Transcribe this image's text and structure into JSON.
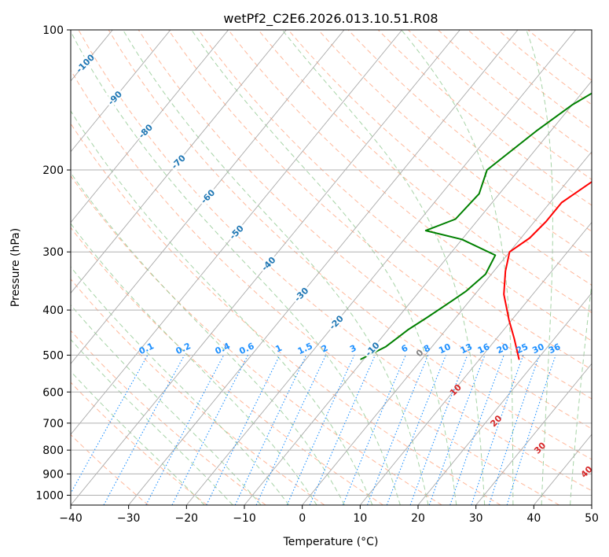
{
  "chart_data": {
    "type": "skew-t",
    "title": "wetPf2_C2E6.2026.013.10.51.R08",
    "xlabel": "Temperature (°C)",
    "ylabel": "Pressure (hPa)",
    "xlim": [
      -40,
      50
    ],
    "ylim": [
      1050,
      100
    ],
    "x_ticks": [
      -40,
      -30,
      -20,
      -10,
      0,
      10,
      20,
      30,
      40,
      50
    ],
    "y_ticks": [
      100,
      200,
      300,
      400,
      500,
      600,
      700,
      800,
      900,
      1000
    ],
    "grid": true,
    "colors": {
      "temperature": "#ff0000",
      "dewpoint": "#008000",
      "isotherm": "#a9a9a9",
      "dry_adiabat": "#ffa07a",
      "moist_adiabat": "#90c890",
      "mixing_ratio": "#1e90ff",
      "isotherm_label": "#1f77b4",
      "moist_label": "#d62728"
    },
    "series": [
      {
        "name": "Temperature",
        "color": "#ff0000",
        "points": [
          [
            16.8,
            510
          ],
          [
            13.0,
            460
          ],
          [
            9.5,
            420
          ],
          [
            5.0,
            370
          ],
          [
            2.0,
            330
          ],
          [
            0.0,
            300
          ],
          [
            1.5,
            280
          ],
          [
            2.0,
            258
          ],
          [
            2.0,
            235
          ],
          [
            4.5,
            210
          ],
          [
            9.0,
            180
          ],
          [
            12.8,
            160
          ],
          [
            12.0,
            140
          ],
          [
            10.5,
            125
          ],
          [
            11.5,
            110
          ],
          [
            12.0,
            100
          ]
        ]
      },
      {
        "name": "Dewpoint",
        "color": "#008000",
        "points": [
          [
            -10.5,
            510
          ],
          [
            -8.0,
            480
          ],
          [
            -6.5,
            440
          ],
          [
            -5.0,
            415
          ],
          [
            -3.5,
            390
          ],
          [
            -2.0,
            365
          ],
          [
            -1.0,
            335
          ],
          [
            -2.0,
            305
          ],
          [
            -10.0,
            282
          ],
          [
            -17.5,
            270
          ],
          [
            -14.0,
            255
          ],
          [
            -13.5,
            225
          ],
          [
            -15.5,
            200
          ],
          [
            -12.5,
            165
          ],
          [
            -10.0,
            145
          ],
          [
            -5.5,
            125
          ],
          [
            -1.5,
            110
          ],
          [
            0.5,
            100
          ]
        ]
      }
    ],
    "isotherm_labels": [
      {
        "value": -100,
        "text": "-100"
      },
      {
        "value": -90,
        "text": "-90"
      },
      {
        "value": -80,
        "text": "-80"
      },
      {
        "value": -70,
        "text": "-70"
      },
      {
        "value": -60,
        "text": "-60"
      },
      {
        "value": -50,
        "text": "-50"
      },
      {
        "value": -40,
        "text": "-40"
      },
      {
        "value": -30,
        "text": "-30"
      },
      {
        "value": -20,
        "text": "-20"
      },
      {
        "value": -10,
        "text": "-10"
      }
    ],
    "mixing_ratio_labels": [
      {
        "value": 0.1,
        "text": "0.1"
      },
      {
        "value": 0.2,
        "text": "0.2"
      },
      {
        "value": 0.4,
        "text": "0.4"
      },
      {
        "value": 0.6,
        "text": "0.6"
      },
      {
        "value": 1,
        "text": "1"
      },
      {
        "value": 1.5,
        "text": "1.5"
      },
      {
        "value": 2,
        "text": "2"
      },
      {
        "value": 3,
        "text": "3"
      },
      {
        "value": 4,
        "text": "4"
      },
      {
        "value": 6,
        "text": "6"
      },
      {
        "value": 8,
        "text": "8"
      },
      {
        "value": 10,
        "text": "10"
      },
      {
        "value": 13,
        "text": "13"
      },
      {
        "value": 16,
        "text": "16"
      },
      {
        "value": 20,
        "text": "20"
      },
      {
        "value": 25,
        "text": "25"
      },
      {
        "value": 30,
        "text": "30"
      },
      {
        "value": 36,
        "text": "36"
      }
    ],
    "moist_adiabat_labels": [
      {
        "value": 0,
        "text": "0",
        "pressure": 500
      },
      {
        "value": 10,
        "text": "10",
        "pressure": 600
      },
      {
        "value": 20,
        "text": "20",
        "pressure": 700
      },
      {
        "value": 30,
        "text": "30",
        "pressure": 800
      },
      {
        "value": 40,
        "text": "40",
        "pressure": 900
      }
    ]
  }
}
